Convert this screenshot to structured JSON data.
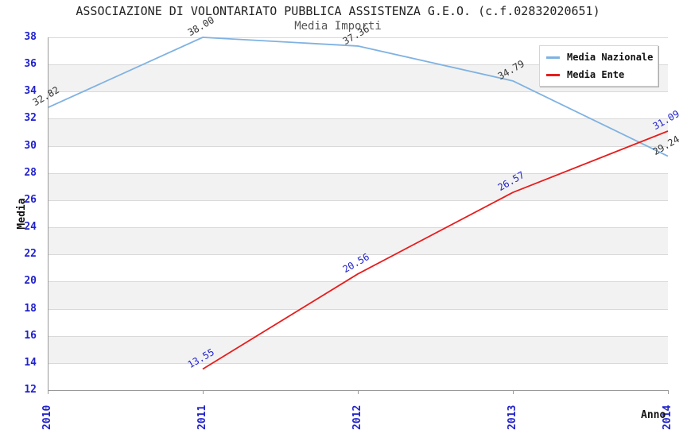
{
  "title": "ASSOCIAZIONE DI VOLONTARIATO PUBBLICA ASSISTENZA G.E.O. (c.f.02832020651)",
  "subtitle": "Media Importi",
  "axes": {
    "y_label": "Media",
    "x_label": "Anno",
    "x_ticks": [
      "2010",
      "2011",
      "2012",
      "2013",
      "2014"
    ],
    "y_tick_min": 12,
    "y_tick_max": 38,
    "y_tick_step": 2
  },
  "legend": [
    {
      "label": "Media Nazionale",
      "color": "#7fb2e2"
    },
    {
      "label": "Media Ente",
      "color": "#e81c1c"
    }
  ],
  "colors": {
    "tick_label": "#2222cc",
    "grid_line": "#d9d9d9",
    "band_light": "#ffffff",
    "band_dark": "#f2f2f2",
    "axis_line": "#999999",
    "nazionale_line": "#7fb2e2",
    "ente_line": "#e81c1c",
    "nazionale_value_label": "#333333",
    "ente_value_label": "#2222cc"
  },
  "chart_data": {
    "type": "line",
    "title": "ASSOCIAZIONE DI VOLONTARIATO PUBBLICA ASSISTENZA G.E.O. (c.f.02832020651)",
    "subtitle": "Media Importi",
    "xlabel": "Anno",
    "ylabel": "Media",
    "x": [
      2010,
      2011,
      2012,
      2013,
      2014
    ],
    "ylim": [
      12,
      38
    ],
    "y_step": 2,
    "grid": true,
    "background_bands": "alternating horizontal stripes",
    "legend_position": "top-right",
    "series": [
      {
        "name": "Media Nazionale",
        "color": "#7fb2e2",
        "label_color": "#333333",
        "values": [
          32.82,
          38.0,
          37.36,
          34.79,
          29.24
        ]
      },
      {
        "name": "Media Ente",
        "color": "#e81c1c",
        "label_color": "#2222cc",
        "values": [
          null,
          13.55,
          20.56,
          26.57,
          31.09
        ]
      }
    ]
  }
}
